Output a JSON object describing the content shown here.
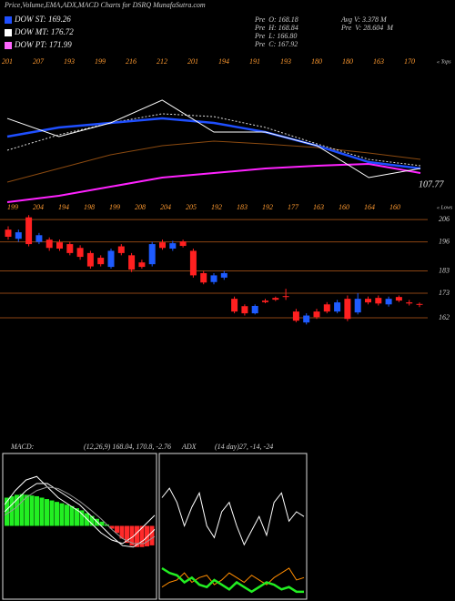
{
  "header": {
    "title": "Price,Volume,EMA,ADX,MACD Charts for DSRQ MunafaSutra.com",
    "legend": [
      {
        "name": "DOW ST: 169.26",
        "color": "#1f4fff"
      },
      {
        "name": "DOW MT: 176.72",
        "color": "#ffffff"
      },
      {
        "name": "DOW PT: 171.99",
        "color": "#ff66ff"
      }
    ],
    "info": [
      "Pre  O: 168.18",
      "Pre  H: 168.84",
      "Pre  L: 166.80",
      "Pre  C: 167.92"
    ],
    "volume": [
      "Avg V: 3.378 M",
      "Pre  V: 28.604  M"
    ]
  },
  "chart_data": [
    {
      "type": "line",
      "ylim": [
        100,
        230
      ],
      "tops": [
        "201",
        "207",
        "193",
        "199",
        "216",
        "212",
        "201",
        "194",
        "191",
        "193",
        "180",
        "180",
        "163",
        "170"
      ],
      "tops_label": "« Tops",
      "lows": [
        "199",
        "204",
        "194",
        "198",
        "199",
        "208",
        "204",
        "205",
        "192",
        "183",
        "192",
        "177",
        "163",
        "160",
        "164",
        "160"
      ],
      "lows_label": "« Lows",
      "last_label": "107.77",
      "series": [
        {
          "color": "#ff22ff",
          "width": 2,
          "values": [
            102.6,
            108.7,
            117.3,
            126,
            130.3,
            134.7,
            137.3,
            139,
            130.3
          ]
        },
        {
          "color": "#8b4a10",
          "width": 1,
          "values": [
            121.7,
            134.7,
            147.7,
            156.3,
            160.7,
            158,
            154.6,
            149.4,
            143.3
          ]
        },
        {
          "color": "#dddddd",
          "width": 1,
          "dash": true,
          "values": [
            152,
            166.7,
            178,
            186.7,
            184,
            173.7,
            158,
            143.3,
            137.3
          ]
        },
        {
          "color": "#1f4fff",
          "width": 2.5,
          "values": [
            165,
            173.7,
            178,
            182.3,
            178,
            169.3,
            156.3,
            140.7,
            134.7
          ]
        },
        {
          "color": "#ffffff",
          "width": 1,
          "values": [
            182.3,
            165,
            178,
            199.7,
            169.3,
            169.3,
            156.3,
            126,
            134.7
          ]
        }
      ]
    },
    {
      "type": "candlestick",
      "ylim": [
        157.5,
        208.5
      ],
      "yticks": [
        206,
        196,
        183,
        173,
        162
      ],
      "grid_color": "#8b4513",
      "up_color": "#1e5bff",
      "down_color": "#ff2020",
      "open": [
        201.5,
        197.4,
        207,
        196,
        197,
        195.8,
        195,
        193.3,
        191,
        188.9,
        184.8,
        194,
        190,
        186.8,
        186,
        195.8,
        193,
        196.2,
        192,
        182,
        178,
        180,
        170.5,
        167.2,
        164,
        169.7,
        170.9,
        171.7,
        164.8,
        159.9,
        164.8,
        168,
        164.8,
        170.5,
        164.4,
        170.5,
        170.9,
        168,
        171.3,
        168.9,
        168.18
      ],
      "high": [
        203,
        201.5,
        208,
        200,
        198,
        197,
        196,
        194.5,
        192,
        190,
        193,
        195,
        191,
        188,
        196,
        197,
        196.5,
        197,
        193,
        183,
        182,
        183,
        171.5,
        168,
        168,
        170.5,
        171.5,
        175,
        166,
        164,
        166,
        169,
        170,
        172,
        173,
        171.5,
        172,
        171.5,
        172,
        170,
        168.84
      ],
      "low": [
        197,
        196,
        194,
        195,
        192,
        192,
        190,
        188,
        184,
        185,
        184,
        190,
        182.5,
        184,
        185,
        192.5,
        192,
        193.5,
        180,
        177,
        177,
        179,
        164,
        163,
        163.5,
        168.5,
        169.5,
        170,
        160,
        159,
        161.5,
        164,
        164,
        160.5,
        163.5,
        168,
        167.5,
        167,
        169,
        167.5,
        166.8
      ],
      "close": [
        198.3,
        200.3,
        195,
        199,
        193.3,
        193,
        191,
        189.3,
        185,
        186,
        192,
        191,
        183.6,
        184.8,
        195,
        193.3,
        195.4,
        194.2,
        181,
        177.8,
        181,
        182,
        164.8,
        164,
        167.3,
        169,
        170.1,
        171.4,
        160.7,
        163,
        162.3,
        164.8,
        168.9,
        161.5,
        170.5,
        168.9,
        168.4,
        170.5,
        169.7,
        168.4,
        167.92
      ]
    },
    {
      "type": "macd",
      "label": "MACD:",
      "params": "(12,26,9) 168.04, 170.8, -2.76",
      "ylim": [
        -10,
        10
      ],
      "up_color": "#22ee22",
      "down_color": "#ff2a2a",
      "histogram": [
        4,
        4.2,
        4.4,
        4.5,
        4.4,
        4.3,
        4.2,
        4,
        3.8,
        3.6,
        3.4,
        3.2,
        3,
        2.8,
        2.5,
        2.2,
        1.8,
        1.4,
        1,
        0.6,
        0.2,
        -0.4,
        -1,
        -1.8,
        -2.4,
        -2.8,
        -3,
        -3,
        -2.9,
        -2.76
      ],
      "series": [
        {
          "color": "#ffffff",
          "values": [
            3,
            5,
            6.5,
            7,
            5.5,
            4,
            3,
            2,
            0.5,
            -1,
            -2,
            -2.5,
            -1.5,
            0,
            1.5
          ]
        },
        {
          "color": "#ffffff",
          "values": [
            2,
            3.5,
            5,
            6,
            6,
            5,
            4,
            3,
            1.5,
            0,
            -1.5,
            -2.8,
            -3,
            -2,
            -0.5
          ]
        },
        {
          "color": "#999999",
          "values": [
            1.5,
            2.5,
            4,
            5,
            5.5,
            5.3,
            4.5,
            3.5,
            2.3,
            1,
            -0.5,
            -1.8,
            -2.5,
            -2.5,
            -1.5
          ]
        }
      ]
    },
    {
      "type": "adx",
      "label": "ADX",
      "params": "(14 day)27, -14, -24",
      "ylim": [
        0,
        60
      ],
      "series": [
        {
          "color": "#ffffff",
          "values": [
            42,
            46,
            40,
            30,
            38,
            44,
            30,
            25,
            36,
            40,
            30,
            22,
            28,
            34,
            26,
            40,
            44,
            32,
            36,
            34
          ]
        },
        {
          "color": "#ff8c00",
          "values": [
            4,
            6,
            7,
            10,
            6,
            8,
            9,
            5,
            7,
            10,
            8,
            6,
            9,
            7,
            5,
            8,
            10,
            12,
            7,
            8
          ]
        },
        {
          "color": "#22ee22",
          "width": 2.5,
          "values": [
            12,
            10,
            9,
            6,
            8,
            5,
            4,
            7,
            5,
            3,
            6,
            4,
            2,
            4,
            6,
            5,
            3,
            4,
            2,
            2
          ]
        }
      ]
    }
  ]
}
